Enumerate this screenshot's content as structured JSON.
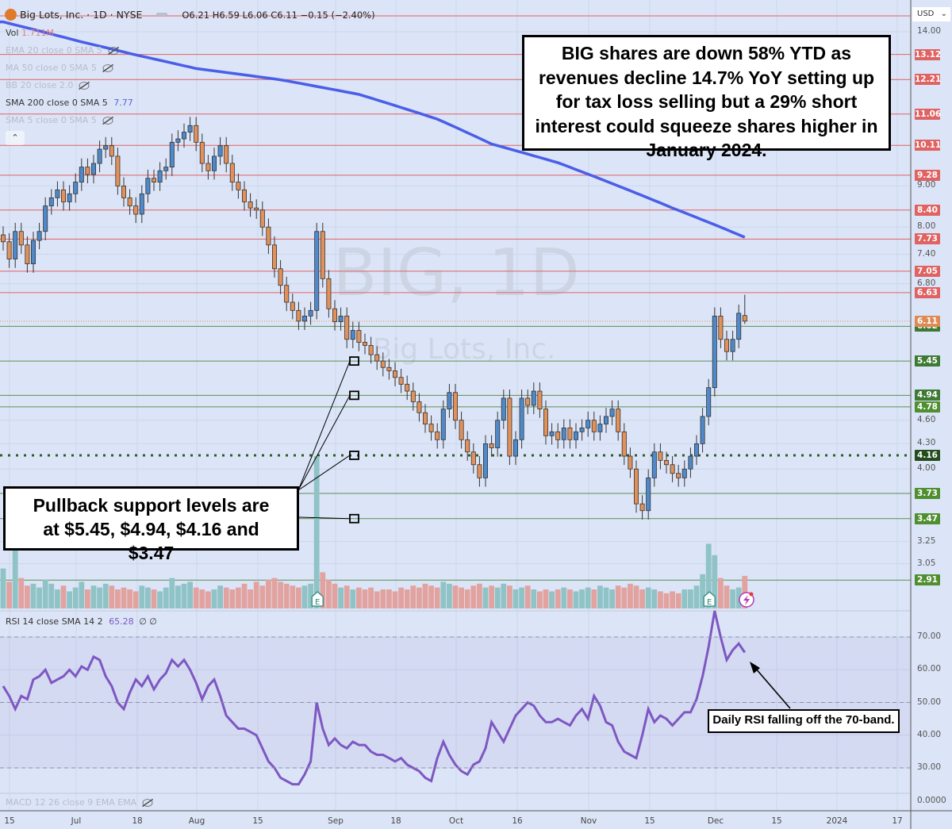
{
  "header": {
    "title": "Big Lots, Inc. · 1D · NYSE",
    "ohlc": "O6.21 H6.59 L6.06 C6.11 −0.15 (−2.40%)",
    "currency": "USD"
  },
  "legend": {
    "vol_label": "Vol",
    "vol_value": "1.711M",
    "ema20": "EMA 20 close 0 SMA 5",
    "ma50": "MA 50 close 0 SMA 5",
    "bb": "BB 20 close 2.0",
    "sma200": "SMA 200 close 0 SMA 5",
    "sma200_value": "7.77",
    "sma5": "SMA 5 close 0 SMA 5",
    "rsi": "RSI 14 close SMA 14 2",
    "rsi_value": "65.28",
    "rsi_extra": "∅ ∅",
    "macd": "MACD 12 26 close 9 EMA EMA"
  },
  "watermark": {
    "symbol": "BIG, 1D",
    "name": "Big Lots, Inc."
  },
  "annotations": {
    "top": "BIG shares are down 58% YTD as revenues decline 14.7% YoY setting up for tax loss selling but a 29% short interest could squeeze shares higher in January 2024.",
    "support": "Pullback support levels are at $5.45, $4.94, $4.16 and $3.47",
    "rsi": "Daily RSI falling off the 70-band."
  },
  "colors": {
    "background": "#dce5f7",
    "up": "#4f89c9",
    "down": "#e2915a",
    "resistance": "#e06262",
    "support": "#3f7a35",
    "sma200": "#4a5ee8",
    "rsi": "#7e57c2"
  },
  "chart_data": [
    {
      "type": "candlestick",
      "title": "Big Lots, Inc. · 1D · NYSE",
      "scale": "log",
      "ylim": [
        2.8,
        14.4
      ],
      "price_ticks": [
        "14.00",
        "9.00",
        "8.00",
        "7.40",
        "6.80",
        "4.60",
        "4.30",
        "4.00",
        "3.25",
        "3.05"
      ],
      "time_ticks": [
        "15",
        "Jul",
        "18",
        "Aug",
        "15",
        "Sep",
        "18",
        "Oct",
        "16",
        "Nov",
        "15",
        "Dec",
        "15",
        "2024",
        "17"
      ],
      "close": [
        7.67,
        7.3,
        7.9,
        7.6,
        7.2,
        7.7,
        7.9,
        8.5,
        8.7,
        8.9,
        8.6,
        8.8,
        9.1,
        9.5,
        9.3,
        9.6,
        10.0,
        10.1,
        9.8,
        9.0,
        8.7,
        8.5,
        8.3,
        8.8,
        9.2,
        9.1,
        9.4,
        9.5,
        10.2,
        10.3,
        10.5,
        10.7,
        10.2,
        9.6,
        9.4,
        9.8,
        10.1,
        9.6,
        9.1,
        8.9,
        8.6,
        8.45,
        8.4,
        8.0,
        7.6,
        7.1,
        6.77,
        6.45,
        6.3,
        6.11,
        6.2,
        6.3,
        7.9,
        6.9,
        6.33,
        6.1,
        6.2,
        5.8,
        5.95,
        5.75,
        5.7,
        5.55,
        5.45,
        5.35,
        5.3,
        5.2,
        5.1,
        5.0,
        4.85,
        4.7,
        4.55,
        4.45,
        4.35,
        4.75,
        4.98,
        4.6,
        4.35,
        4.2,
        4.05,
        3.9,
        4.3,
        4.25,
        4.6,
        4.9,
        4.15,
        4.35,
        4.9,
        4.8,
        5.0,
        4.75,
        4.4,
        4.45,
        4.35,
        4.5,
        4.35,
        4.45,
        4.5,
        4.6,
        4.45,
        4.55,
        4.65,
        4.75,
        4.45,
        4.15,
        4.0,
        3.62,
        3.55,
        3.9,
        4.2,
        4.1,
        4.05,
        3.95,
        3.9,
        4.0,
        4.15,
        4.3,
        4.65,
        5.05,
        6.2,
        5.8,
        5.6,
        5.8,
        6.25,
        6.11
      ],
      "last_bar": {
        "open": 6.21,
        "high": 6.59,
        "low": 6.06,
        "close": 6.11,
        "change": -0.15,
        "change_pct": -2.4
      },
      "volume_millions": [
        2.1,
        1.4,
        3.1,
        1.6,
        1.2,
        1.3,
        1.1,
        1.5,
        1.3,
        1.0,
        1.2,
        0.9,
        1.1,
        1.4,
        1.0,
        1.2,
        1.1,
        1.3,
        1.2,
        1.0,
        1.1,
        1.0,
        0.9,
        1.2,
        1.1,
        1.0,
        0.9,
        1.1,
        1.6,
        1.2,
        1.3,
        1.4,
        1.1,
        1.0,
        0.9,
        1.0,
        1.2,
        1.1,
        1.0,
        1.1,
        1.3,
        1.0,
        1.4,
        1.2,
        1.5,
        1.6,
        1.4,
        1.3,
        1.2,
        1.1,
        1.2,
        1.3,
        8.0,
        1.9,
        1.5,
        1.3,
        1.1,
        1.2,
        1.0,
        1.1,
        1.0,
        1.1,
        0.9,
        1.0,
        1.0,
        0.9,
        1.1,
        1.0,
        1.2,
        1.1,
        1.3,
        1.2,
        1.1,
        1.4,
        1.3,
        1.2,
        1.1,
        1.0,
        1.2,
        1.3,
        1.1,
        1.2,
        1.1,
        1.3,
        1.2,
        1.0,
        1.1,
        1.2,
        1.0,
        0.9,
        1.0,
        0.9,
        1.0,
        1.1,
        1.0,
        0.9,
        1.0,
        1.1,
        1.0,
        1.2,
        1.1,
        1.0,
        1.2,
        1.1,
        1.3,
        1.2,
        1.0,
        1.1,
        1.0,
        0.9,
        0.8,
        0.9,
        0.8,
        1.0,
        1.0,
        1.2,
        1.8,
        3.4,
        2.8,
        1.6,
        1.2,
        1.0,
        1.1,
        1.711
      ],
      "earnings_bars": [
        52,
        117
      ],
      "sma200_points": [
        [
          0,
          14.4
        ],
        [
          13,
          13.6
        ],
        [
          22,
          13.1
        ],
        [
          32,
          12.6
        ],
        [
          46,
          12.2
        ],
        [
          59,
          11.7
        ],
        [
          72,
          10.9
        ],
        [
          81,
          10.15
        ],
        [
          92,
          9.62
        ],
        [
          102,
          9.0
        ],
        [
          111,
          8.45
        ],
        [
          123,
          7.77
        ]
      ],
      "resistance_levels": [
        "13.12",
        "12.21",
        "11.06",
        "10.11",
        "9.28",
        "8.40",
        "7.73",
        "7.05",
        "6.63"
      ],
      "support_levels": [
        "6.02",
        "5.45",
        "4.94",
        "4.78",
        "4.16",
        "3.73",
        "3.47",
        "2.91"
      ],
      "dotted_level": "4.16",
      "current_price": "6.11",
      "annotated_supports": [
        5.45,
        4.94,
        4.16,
        3.47
      ]
    },
    {
      "type": "line",
      "title": "RSI 14 close SMA 14 2",
      "ylim": [
        20,
        82
      ],
      "bands": [
        30,
        50,
        70
      ],
      "y_ticks": [
        "70.00",
        "60.00",
        "50.00",
        "40.00",
        "30.00"
      ],
      "values": [
        55,
        52,
        48,
        52,
        51,
        57,
        58,
        60,
        56,
        57,
        58,
        60,
        58,
        61,
        60,
        64,
        63,
        58,
        55,
        50,
        48,
        53,
        57,
        55,
        58,
        54,
        57,
        59,
        63,
        61,
        63,
        60,
        56,
        51,
        55,
        57,
        52,
        46,
        44,
        42,
        42,
        41,
        40,
        36,
        32,
        30,
        27,
        26,
        25,
        25,
        28,
        32,
        50,
        42,
        37,
        39,
        37,
        36,
        38,
        37,
        37,
        35,
        34,
        34,
        33,
        32,
        33,
        31,
        30,
        29,
        27,
        26,
        33,
        38,
        34,
        31,
        29,
        28,
        31,
        32,
        36,
        44,
        41,
        38,
        42,
        46,
        48,
        50,
        49,
        46,
        44,
        44,
        45,
        44,
        43,
        46,
        48,
        45,
        52,
        49,
        44,
        43,
        38,
        35,
        34,
        33,
        40,
        48,
        44,
        46,
        45,
        43,
        45,
        47,
        47,
        51,
        58,
        67,
        78,
        70,
        63,
        66,
        68,
        65.28
      ]
    },
    {
      "type": "line",
      "title": "MACD 12 26 close 9 EMA EMA",
      "y_ticks": [
        "0.0000"
      ]
    }
  ]
}
